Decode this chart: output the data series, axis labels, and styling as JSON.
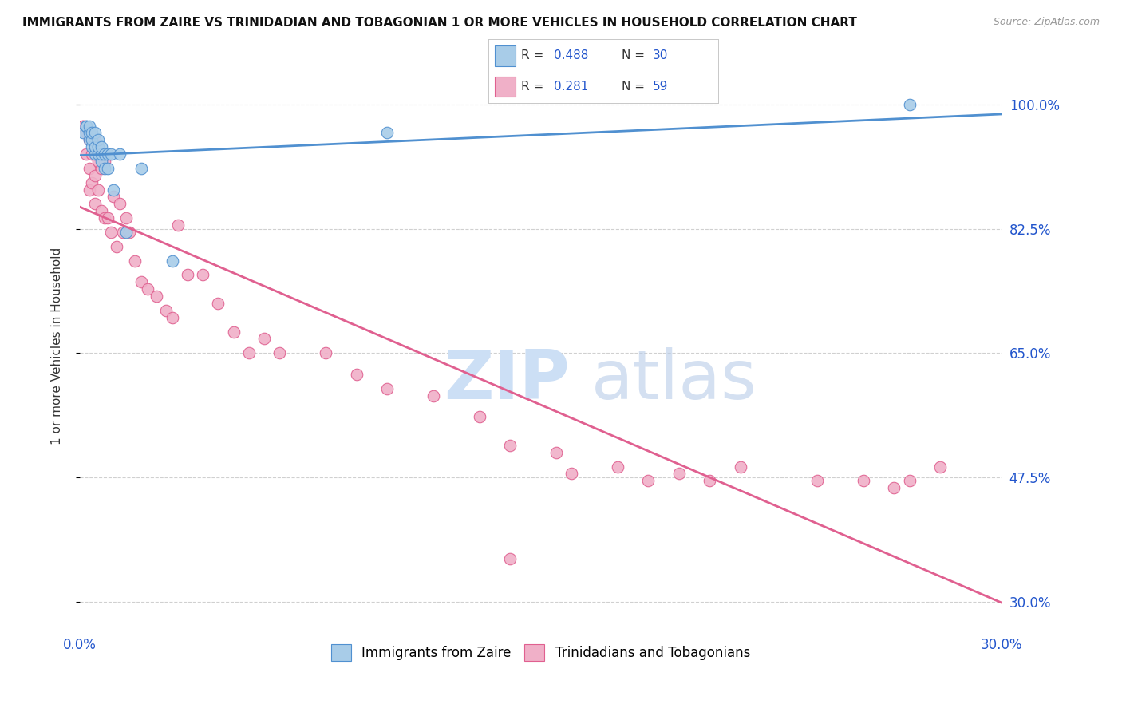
{
  "title": "IMMIGRANTS FROM ZAIRE VS TRINIDADIAN AND TOBAGONIAN 1 OR MORE VEHICLES IN HOUSEHOLD CORRELATION CHART",
  "source": "Source: ZipAtlas.com",
  "ylabel": "1 or more Vehicles in Household",
  "ytick_labels": [
    "100.0%",
    "82.5%",
    "65.0%",
    "47.5%",
    "30.0%"
  ],
  "ytick_values": [
    1.0,
    0.825,
    0.65,
    0.475,
    0.3
  ],
  "xlim": [
    0.0,
    0.3
  ],
  "ylim": [
    0.26,
    1.06
  ],
  "legend_r1": "R = 0.488",
  "legend_n1": "N = 30",
  "legend_r2": "R = 0.281",
  "legend_n2": "N = 59",
  "color_zaire": "#a8cce8",
  "color_trinidad": "#f0b0c8",
  "trendline_zaire": "#5090d0",
  "trendline_trinidad": "#e06090",
  "marker_size": 110,
  "zaire_x": [
    0.001,
    0.002,
    0.002,
    0.003,
    0.003,
    0.003,
    0.004,
    0.004,
    0.004,
    0.005,
    0.005,
    0.005,
    0.006,
    0.006,
    0.006,
    0.007,
    0.007,
    0.007,
    0.008,
    0.008,
    0.009,
    0.009,
    0.01,
    0.011,
    0.013,
    0.015,
    0.02,
    0.03,
    0.1,
    0.27
  ],
  "zaire_y": [
    0.96,
    0.97,
    0.97,
    0.95,
    0.96,
    0.97,
    0.94,
    0.95,
    0.96,
    0.93,
    0.94,
    0.96,
    0.93,
    0.94,
    0.95,
    0.92,
    0.93,
    0.94,
    0.91,
    0.93,
    0.91,
    0.93,
    0.93,
    0.88,
    0.93,
    0.82,
    0.91,
    0.78,
    0.96,
    1.0
  ],
  "trinidad_x": [
    0.001,
    0.001,
    0.002,
    0.002,
    0.003,
    0.003,
    0.003,
    0.004,
    0.004,
    0.005,
    0.005,
    0.005,
    0.006,
    0.006,
    0.007,
    0.007,
    0.008,
    0.008,
    0.009,
    0.01,
    0.011,
    0.012,
    0.013,
    0.014,
    0.015,
    0.016,
    0.018,
    0.02,
    0.022,
    0.025,
    0.028,
    0.03,
    0.032,
    0.035,
    0.04,
    0.045,
    0.05,
    0.055,
    0.06,
    0.065,
    0.08,
    0.09,
    0.1,
    0.115,
    0.13,
    0.14,
    0.155,
    0.16,
    0.175,
    0.185,
    0.195,
    0.205,
    0.215,
    0.24,
    0.255,
    0.265,
    0.27,
    0.28,
    0.14
  ],
  "trinidad_y": [
    0.97,
    0.97,
    0.93,
    0.96,
    0.88,
    0.91,
    0.95,
    0.89,
    0.93,
    0.86,
    0.9,
    0.95,
    0.88,
    0.92,
    0.85,
    0.91,
    0.84,
    0.92,
    0.84,
    0.82,
    0.87,
    0.8,
    0.86,
    0.82,
    0.84,
    0.82,
    0.78,
    0.75,
    0.74,
    0.73,
    0.71,
    0.7,
    0.83,
    0.76,
    0.76,
    0.72,
    0.68,
    0.65,
    0.67,
    0.65,
    0.65,
    0.62,
    0.6,
    0.59,
    0.56,
    0.52,
    0.51,
    0.48,
    0.49,
    0.47,
    0.48,
    0.47,
    0.49,
    0.47,
    0.47,
    0.46,
    0.47,
    0.49,
    0.36
  ],
  "watermark_zip_color": "#ccdff5",
  "watermark_atlas_color": "#b8cce8"
}
